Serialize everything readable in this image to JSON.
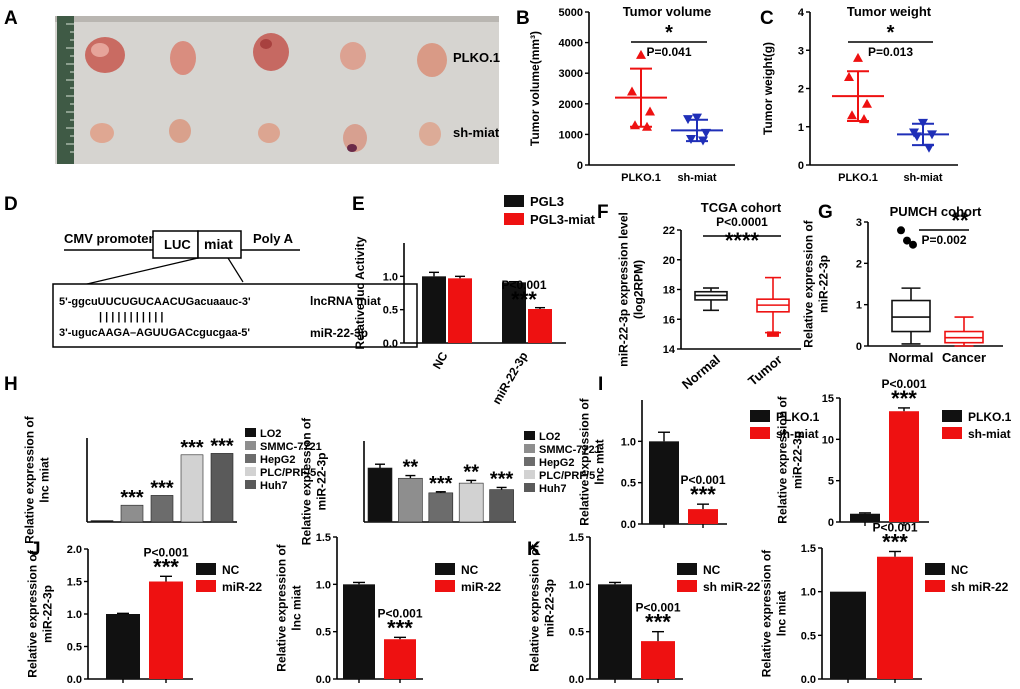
{
  "colors": {
    "black": "#111111",
    "red": "#ee1111",
    "blue": "#1f2fb8",
    "gray1": "#8e8e8e",
    "gray2": "#6c6c6c",
    "gray3": "#d2d2d2",
    "gray4": "#5a5a5a"
  },
  "letters": {
    "A": "A",
    "B": "B",
    "C": "C",
    "D": "D",
    "E": "E",
    "F": "F",
    "G": "G",
    "H": "H",
    "I": "I",
    "J": "J",
    "K": "K"
  },
  "photo": {
    "row1": "PLKO.1",
    "row2": "sh-miat"
  },
  "panel_d": {
    "cmv": "CMV promoter",
    "luc": "LUC",
    "miat": "miat",
    "polya": "Poly A",
    "seq1": "5'-ggcuUUCUGUCAACUGacuaauc-3'",
    "seq2": "3'-ugucAAGA–AGUUGACcgucgaa-5'",
    "lab1": "lncRNA miat",
    "lab2": "miR-22-3p",
    "pairs": "| | | |   | | | | | | |"
  },
  "stars": {
    "one": "*",
    "two": "**",
    "three": "***",
    "four": "****"
  },
  "chart_data": [
    {
      "id": "B",
      "type": "scatter",
      "title": "Tumor volume",
      "ylabel": "Tumor volume(mm³)",
      "ylim": [
        0,
        5000
      ],
      "yticks": [
        "0",
        "1000",
        "2000",
        "3000",
        "4000",
        "5000"
      ],
      "categories": [
        "PLKO.1",
        "sh-miat"
      ],
      "series": [
        {
          "name": "PLKO.1",
          "values": [
            3600,
            2400,
            1750,
            1300,
            1250
          ],
          "mean": 2200,
          "sd": 950,
          "color": "#ee1111"
        },
        {
          "name": "sh-miat",
          "values": [
            1550,
            1500,
            1050,
            850,
            800
          ],
          "mean": 1130,
          "sd": 350,
          "color": "#1f2fb8"
        }
      ],
      "p_label": "P=0.041",
      "sig": "*"
    },
    {
      "id": "C",
      "type": "scatter",
      "title": "Tumor weight",
      "ylabel": "Tumor weight(g)",
      "ylim": [
        0,
        4
      ],
      "yticks": [
        "0",
        "1",
        "2",
        "3",
        "4"
      ],
      "categories": [
        "PLKO.1",
        "sh-miat"
      ],
      "series": [
        {
          "name": "PLKO.1",
          "values": [
            2.8,
            2.3,
            1.6,
            1.3,
            1.2
          ],
          "mean": 1.8,
          "sd": 0.65,
          "color": "#ee1111"
        },
        {
          "name": "sh-miat",
          "values": [
            1.1,
            0.85,
            0.8,
            0.75,
            0.45
          ],
          "mean": 0.8,
          "sd": 0.28,
          "color": "#1f2fb8"
        }
      ],
      "p_label": "P=0.013",
      "sig": "*"
    },
    {
      "id": "E",
      "type": "bar",
      "ylabel": "Relative luc Activity",
      "ylim": [
        0,
        1.5
      ],
      "yticks": [
        "0.0",
        "0.5",
        "1.0"
      ],
      "categories": [
        "NC",
        "miR-22-3p"
      ],
      "series": [
        {
          "name": "PGL3",
          "values": [
            1.0,
            0.91
          ],
          "err": [
            0.06,
            0.01
          ]
        },
        {
          "name": "PGL3-miat",
          "values": [
            0.97,
            0.51
          ],
          "err": [
            0.03,
            0.02
          ]
        }
      ],
      "p_label": "P<0.001",
      "sig": "***"
    },
    {
      "id": "F",
      "type": "box",
      "title": "TCGA cohort",
      "ylabel": "miR-22-3p expression level (log2RPM)",
      "ylim": [
        14,
        22
      ],
      "yticks": [
        "14",
        "16",
        "18",
        "20",
        "22"
      ],
      "categories": [
        "Normal",
        "Tumor"
      ],
      "boxes": [
        {
          "min": 16.6,
          "q1": 17.3,
          "median": 17.6,
          "q3": 17.85,
          "max": 18.1
        },
        {
          "min": 15.1,
          "q1": 16.5,
          "median": 16.95,
          "q3": 17.35,
          "max": 18.8,
          "out": [
            14.95,
            15.05
          ]
        }
      ],
      "p_label": "P<0.0001",
      "sig": "****"
    },
    {
      "id": "G",
      "type": "box",
      "title": "PUMCH cohort",
      "ylabel": "Relative expression of miR-22-3p",
      "ylim": [
        0,
        3
      ],
      "yticks": [
        "0",
        "1",
        "2",
        "3"
      ],
      "categories": [
        "Normal",
        "Cancer"
      ],
      "boxes": [
        {
          "min": 0.05,
          "q1": 0.35,
          "median": 0.7,
          "q3": 1.1,
          "max": 1.4,
          "out": [
            2.8,
            2.55,
            2.45
          ]
        },
        {
          "min": 0.0,
          "q1": 0.08,
          "median": 0.2,
          "q3": 0.35,
          "max": 0.7
        }
      ],
      "p_label": "P=0.002",
      "sig": "**"
    },
    {
      "id": "H1",
      "type": "bar",
      "ylabel": "Relative expression of lnc miat",
      "ylim": [
        0,
        60
      ],
      "categories": [
        "LO2",
        "SMMC-7721",
        "HepG2",
        "PLC/PRF/5",
        "Huh7"
      ],
      "values": [
        1,
        12,
        19,
        48,
        49
      ],
      "sigs": [
        "",
        "***",
        "***",
        "***",
        "***"
      ]
    },
    {
      "id": "H2",
      "type": "bar",
      "ylabel": "Relative expression of miR-22-3p",
      "ylim": [
        0,
        1.5
      ],
      "categories": [
        "LO2",
        "SMMC-7721",
        "HepG2",
        "PLC/PRF/5",
        "Huh7"
      ],
      "values": [
        1.0,
        0.81,
        0.54,
        0.72,
        0.6
      ],
      "err": [
        0.07,
        0.05,
        0.02,
        0.05,
        0.04
      ],
      "sigs": [
        "",
        "**",
        "***",
        "**",
        "***"
      ]
    },
    {
      "id": "I1",
      "type": "bar",
      "ylabel": "Relative expression of lnc miat",
      "ylim": [
        0,
        1.5
      ],
      "yticks": [
        "0.0",
        "0.5",
        "1.0"
      ],
      "categories": [
        "PLKO.1",
        "sh-miat"
      ],
      "values": [
        1.0,
        0.18
      ],
      "err": [
        0.11,
        0.06
      ],
      "p_label": "P<0.001",
      "sig": "***"
    },
    {
      "id": "I2",
      "type": "bar",
      "ylabel": "Relative expression of miR-22-3p",
      "ylim": [
        0,
        15
      ],
      "yticks": [
        "0",
        "5",
        "10",
        "15"
      ],
      "categories": [
        "PLKO.1",
        "sh-miat"
      ],
      "values": [
        1.0,
        13.4
      ],
      "err": [
        0.1,
        0.4
      ],
      "p_label": "P<0.001",
      "sig": "***"
    },
    {
      "id": "J1",
      "type": "bar",
      "ylabel": "Relative expression of miR-22-3p",
      "ylim": [
        0,
        2.0
      ],
      "yticks": [
        "0.0",
        "0.5",
        "1.0",
        "1.5",
        "2.0"
      ],
      "categories": [
        "NC",
        "miR-22"
      ],
      "values": [
        1.0,
        1.5
      ],
      "err": [
        0.01,
        0.08
      ],
      "p_label": "P<0.001",
      "sig": "***"
    },
    {
      "id": "J2",
      "type": "bar",
      "ylabel": "Relative expression of lnc miat",
      "ylim": [
        0,
        1.5
      ],
      "yticks": [
        "0.0",
        "0.5",
        "1.0",
        "1.5"
      ],
      "categories": [
        "NC",
        "miR-22"
      ],
      "values": [
        1.0,
        0.42
      ],
      "err": [
        0.02,
        0.02
      ],
      "p_label": "P<0.001",
      "sig": "***"
    },
    {
      "id": "K1",
      "type": "bar",
      "ylabel": "Relative expression of miR-22-3p",
      "ylim": [
        0,
        1.5
      ],
      "yticks": [
        "0.0",
        "0.5",
        "1.0",
        "1.5"
      ],
      "categories": [
        "NC",
        "sh miR-22"
      ],
      "values": [
        1.0,
        0.4
      ],
      "err": [
        0.02,
        0.1
      ],
      "p_label": "P<0.001",
      "sig": "***"
    },
    {
      "id": "K2",
      "type": "bar",
      "ylabel": "Relative expression of lnc miat",
      "ylim": [
        0,
        1.5
      ],
      "yticks": [
        "0.0",
        "0.5",
        "1.0",
        "1.5"
      ],
      "categories": [
        "NC",
        "sh miR-22"
      ],
      "values": [
        1.0,
        1.4
      ],
      "err": [
        0.0,
        0.06
      ],
      "p_label": "P<0.001",
      "sig": "***"
    }
  ]
}
